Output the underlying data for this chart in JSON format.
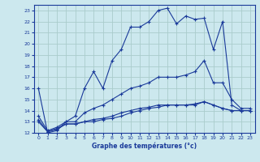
{
  "title": "",
  "xlabel": "Graphe des températures (°c)",
  "bg_color": "#cce8ee",
  "grid_color": "#aacccc",
  "line_color": "#1a3a9a",
  "xlim": [
    -0.5,
    23.5
  ],
  "ylim": [
    12,
    23.5
  ],
  "xticks": [
    0,
    1,
    2,
    3,
    4,
    5,
    6,
    7,
    8,
    9,
    10,
    11,
    12,
    13,
    14,
    15,
    16,
    17,
    18,
    19,
    20,
    21,
    22,
    23
  ],
  "yticks": [
    12,
    13,
    14,
    15,
    16,
    17,
    18,
    19,
    20,
    21,
    22,
    23
  ],
  "lines": [
    {
      "x": [
        0,
        1,
        2,
        3,
        4,
        5,
        6,
        7,
        8,
        9,
        10,
        11,
        12,
        13,
        14,
        15,
        16,
        17,
        18,
        19,
        20,
        21,
        22,
        23
      ],
      "y": [
        16,
        12,
        12.2,
        13,
        13.5,
        16,
        17.5,
        16,
        18.5,
        19.5,
        21.5,
        21.5,
        22,
        23,
        23.2,
        21.8,
        22.5,
        22.2,
        22.3,
        19.5,
        22,
        14.5,
        14,
        14
      ],
      "marker": "+"
    },
    {
      "x": [
        0,
        1,
        2,
        3,
        4,
        5,
        6,
        7,
        8,
        9,
        10,
        11,
        12,
        13,
        14,
        15,
        16,
        17,
        18,
        19,
        20,
        21,
        22,
        23
      ],
      "y": [
        13.5,
        12.2,
        12.5,
        13,
        13,
        13.8,
        14.2,
        14.5,
        15,
        15.5,
        16,
        16.2,
        16.5,
        17,
        17,
        17,
        17.2,
        17.5,
        18.5,
        16.5,
        16.5,
        15,
        14.2,
        14.2
      ],
      "marker": "+"
    },
    {
      "x": [
        0,
        1,
        2,
        3,
        4,
        5,
        6,
        7,
        8,
        9,
        10,
        11,
        12,
        13,
        14,
        15,
        16,
        17,
        18,
        19,
        20,
        21,
        22,
        23
      ],
      "y": [
        13,
        12.1,
        12.3,
        12.8,
        12.8,
        13,
        13.2,
        13.3,
        13.5,
        13.8,
        14,
        14.2,
        14.3,
        14.5,
        14.5,
        14.5,
        14.5,
        14.6,
        14.8,
        14.5,
        14.2,
        14,
        14,
        14
      ],
      "marker": "+"
    },
    {
      "x": [
        0,
        1,
        2,
        3,
        4,
        5,
        6,
        7,
        8,
        9,
        10,
        11,
        12,
        13,
        14,
        15,
        16,
        17,
        18,
        19,
        20,
        21,
        22,
        23
      ],
      "y": [
        13.2,
        12.1,
        12.4,
        12.8,
        12.8,
        13,
        13,
        13.2,
        13.3,
        13.5,
        13.8,
        14,
        14.2,
        14.3,
        14.5,
        14.5,
        14.5,
        14.5,
        14.8,
        14.5,
        14.2,
        14,
        14,
        14
      ],
      "marker": "+"
    }
  ]
}
